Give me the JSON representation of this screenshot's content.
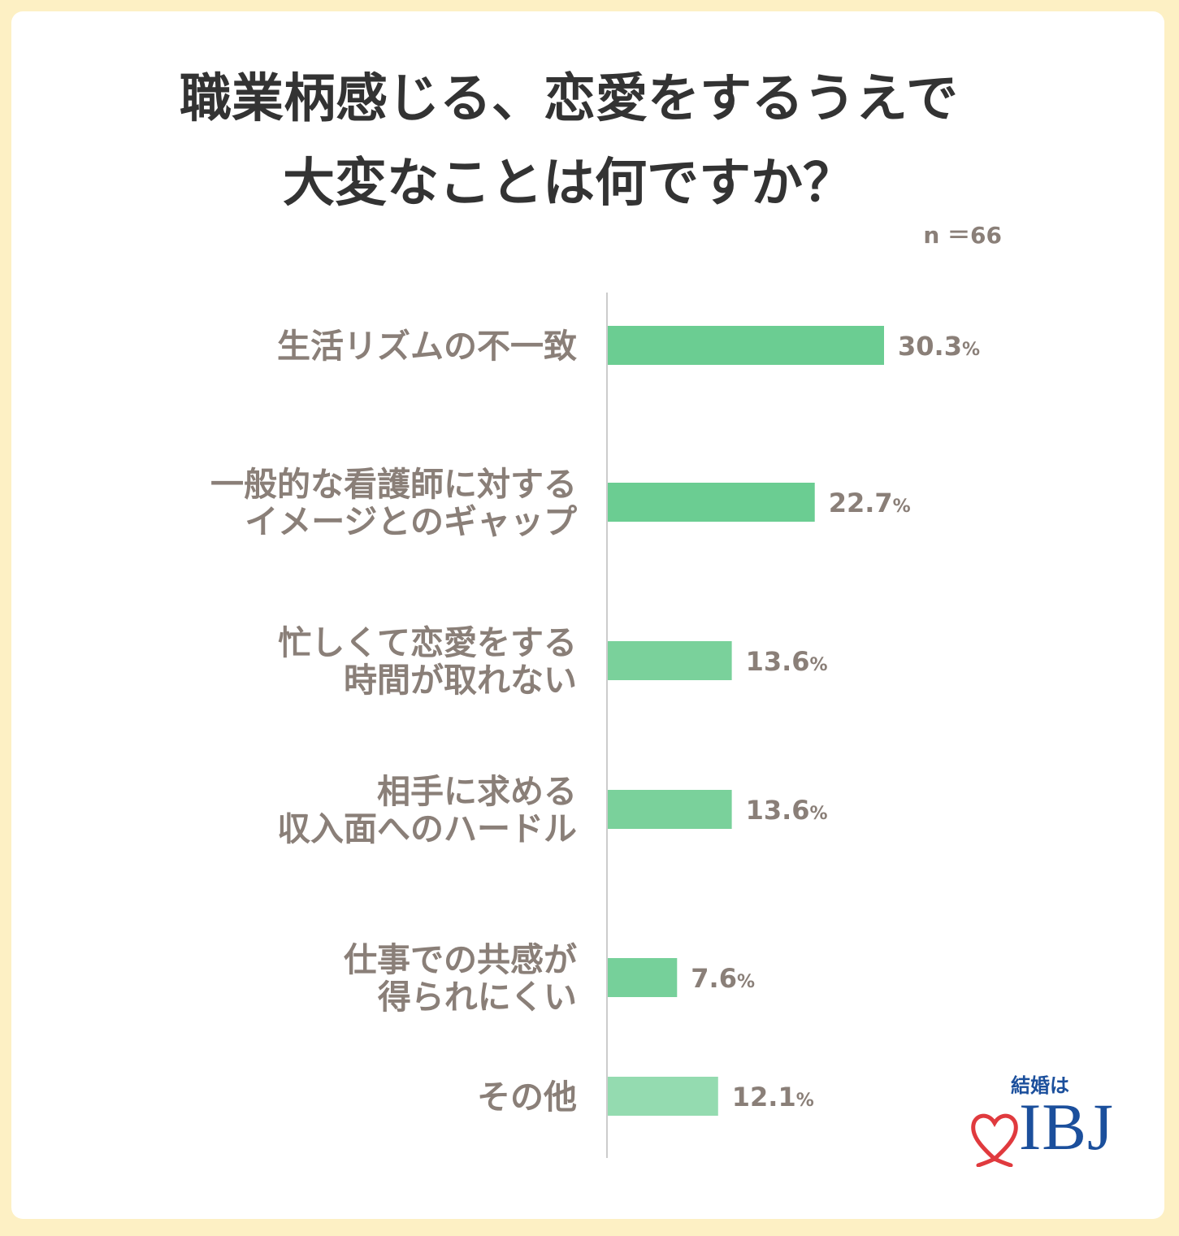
{
  "title_lines": [
    "職業柄感じる、恋愛をするうえで",
    "大変なことは何ですか？"
  ],
  "sample_size": "n ＝66",
  "chart_data": {
    "type": "bar",
    "orientation": "horizontal",
    "title": "職業柄感じる、恋愛をするうえで大変なことは何ですか？",
    "categories": [
      [
        "生活リズムの不一致"
      ],
      [
        "一般的な看護師に対する",
        "イメージとのギャップ"
      ],
      [
        "忙しくて恋愛をする",
        "時間が取れない"
      ],
      [
        "相手に求める",
        "収入面へのハードル"
      ],
      [
        "仕事での共感が",
        "得られにくい"
      ],
      [
        "その他"
      ]
    ],
    "values": [
      30.3,
      22.7,
      13.6,
      13.6,
      7.6,
      12.1
    ],
    "value_labels": [
      "30.3",
      "22.7",
      "13.6",
      "13.6",
      "7.6",
      "12.1"
    ],
    "unit": "%",
    "bar_colors": [
      "#6bcd92",
      "#6bcd92",
      "#7ad19b",
      "#7ad19b",
      "#76d09a",
      "#94dbb0"
    ],
    "axis_color": "#cccccc",
    "xlim": [
      0,
      30.3
    ],
    "grid": false
  },
  "logo": {
    "tagline": "結婚は",
    "brand": "IBJ",
    "brand_color": "#1b4f9c",
    "heart_color": "#e03a3e"
  }
}
